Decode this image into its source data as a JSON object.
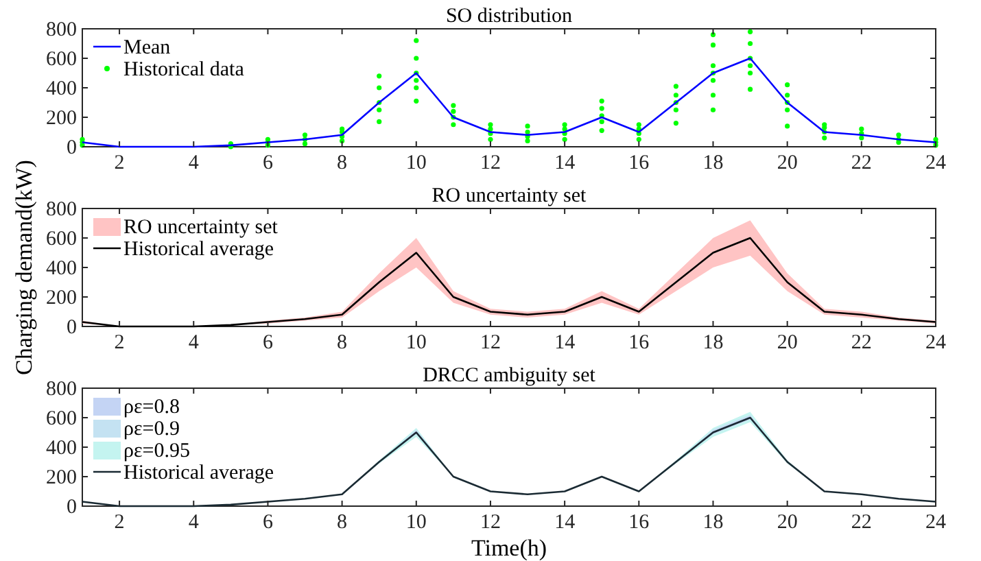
{
  "chart_data": [
    {
      "type": "line",
      "title": "SO distribution",
      "x": [
        1,
        2,
        3,
        4,
        5,
        6,
        7,
        8,
        9,
        10,
        11,
        12,
        13,
        14,
        15,
        16,
        17,
        18,
        19,
        20,
        21,
        22,
        23,
        24
      ],
      "xlim": [
        1,
        24
      ],
      "xticks": [
        2,
        4,
        6,
        8,
        10,
        12,
        14,
        16,
        18,
        20,
        22,
        24
      ],
      "ylim": [
        0,
        800
      ],
      "yticks": [
        0,
        200,
        400,
        600,
        800
      ],
      "legend": "top left",
      "series": [
        {
          "name": "Mean",
          "type": "line",
          "color": "#0000ff",
          "values": [
            30,
            0,
            0,
            0,
            10,
            30,
            50,
            80,
            300,
            500,
            200,
            100,
            80,
            100,
            200,
            100,
            300,
            500,
            600,
            300,
            100,
            80,
            50,
            30
          ]
        },
        {
          "name": "Historical data",
          "type": "scatter",
          "color": "#00ff00",
          "marker": "circle",
          "x": [
            1,
            1,
            1,
            5,
            5,
            6,
            6,
            6,
            7,
            7,
            7,
            8,
            8,
            8,
            8,
            9,
            9,
            9,
            9,
            9,
            10,
            10,
            10,
            10,
            10,
            10,
            11,
            11,
            11,
            11,
            12,
            12,
            12,
            12,
            13,
            13,
            13,
            13,
            14,
            14,
            14,
            14,
            15,
            15,
            15,
            15,
            15,
            16,
            16,
            16,
            16,
            17,
            17,
            17,
            17,
            17,
            18,
            18,
            18,
            18,
            18,
            18,
            18,
            19,
            19,
            19,
            19,
            19,
            19,
            20,
            20,
            20,
            20,
            20,
            21,
            21,
            21,
            21,
            22,
            22,
            22,
            23,
            23,
            23,
            24,
            24,
            24
          ],
          "values": [
            10,
            30,
            50,
            0,
            20,
            10,
            30,
            50,
            20,
            50,
            80,
            40,
            70,
            100,
            120,
            170,
            250,
            300,
            400,
            480,
            310,
            400,
            450,
            500,
            600,
            720,
            150,
            200,
            240,
            280,
            50,
            90,
            120,
            150,
            40,
            70,
            100,
            140,
            50,
            90,
            120,
            150,
            110,
            170,
            210,
            260,
            310,
            50,
            90,
            120,
            150,
            160,
            250,
            300,
            350,
            410,
            250,
            350,
            450,
            500,
            550,
            690,
            760,
            390,
            500,
            550,
            600,
            700,
            780,
            140,
            250,
            300,
            350,
            420,
            60,
            100,
            130,
            150,
            60,
            90,
            120,
            30,
            50,
            80,
            10,
            30,
            50
          ]
        }
      ]
    },
    {
      "type": "line",
      "title": "RO uncertainty set",
      "ylabel": "Charging demand(kW)",
      "x": [
        1,
        2,
        3,
        4,
        5,
        6,
        7,
        8,
        9,
        10,
        11,
        12,
        13,
        14,
        15,
        16,
        17,
        18,
        19,
        20,
        21,
        22,
        23,
        24
      ],
      "xlim": [
        1,
        24
      ],
      "xticks": [
        2,
        4,
        6,
        8,
        10,
        12,
        14,
        16,
        18,
        20,
        22,
        24
      ],
      "ylim": [
        0,
        800
      ],
      "yticks": [
        0,
        200,
        400,
        600,
        800
      ],
      "legend": "top left",
      "series": [
        {
          "name": "RO uncertainty set",
          "type": "line",
          "color": "#ffc4c4",
          "values": [
            null,
            null,
            null,
            null,
            null,
            null,
            null,
            null,
            null,
            null,
            null,
            null,
            null,
            null,
            null,
            null,
            null,
            null,
            null,
            null,
            null,
            null,
            null,
            null
          ],
          "lower": [
            20,
            0,
            0,
            0,
            10,
            20,
            40,
            60,
            240,
            400,
            160,
            80,
            60,
            80,
            160,
            80,
            240,
            400,
            480,
            240,
            80,
            60,
            40,
            20
          ],
          "upper": [
            40,
            0,
            0,
            0,
            10,
            40,
            60,
            100,
            360,
            600,
            240,
            120,
            100,
            120,
            240,
            120,
            360,
            600,
            720,
            360,
            120,
            100,
            60,
            40
          ]
        },
        {
          "name": "Historical average",
          "type": "line",
          "color": "#000000",
          "values": [
            30,
            0,
            0,
            0,
            10,
            30,
            50,
            80,
            300,
            500,
            200,
            100,
            80,
            100,
            200,
            100,
            300,
            500,
            600,
            300,
            100,
            80,
            50,
            30
          ]
        }
      ]
    },
    {
      "type": "line",
      "title": "DRCC ambiguity set",
      "xlabel": "Time(h)",
      "x": [
        1,
        2,
        3,
        4,
        5,
        6,
        7,
        8,
        9,
        10,
        11,
        12,
        13,
        14,
        15,
        16,
        17,
        18,
        19,
        20,
        21,
        22,
        23,
        24
      ],
      "xlim": [
        1,
        24
      ],
      "xticks": [
        2,
        4,
        6,
        8,
        10,
        12,
        14,
        16,
        18,
        20,
        22,
        24
      ],
      "ylim": [
        0,
        800
      ],
      "yticks": [
        0,
        200,
        400,
        600,
        800
      ],
      "legend": "top left",
      "series": [
        {
          "name": "ρε=0.8",
          "type": "line",
          "color": "#c4d4f4",
          "values": [
            null,
            null,
            null,
            null,
            null,
            null,
            null,
            null,
            null,
            null,
            null,
            null,
            null,
            null,
            null,
            null,
            null,
            null,
            null,
            null,
            null,
            null,
            null,
            null
          ],
          "lower": [
            30,
            0,
            0,
            0,
            10,
            30,
            50,
            80,
            300,
            490,
            200,
            100,
            80,
            100,
            200,
            100,
            300,
            490,
            590,
            300,
            100,
            80,
            50,
            30
          ],
          "upper": [
            30,
            0,
            0,
            0,
            10,
            30,
            50,
            80,
            300,
            510,
            200,
            100,
            80,
            100,
            200,
            100,
            300,
            510,
            610,
            300,
            100,
            80,
            50,
            30
          ]
        },
        {
          "name": "ρε=0.9",
          "type": "line",
          "color": "#c4e2f2",
          "values": [
            null,
            null,
            null,
            null,
            null,
            null,
            null,
            null,
            null,
            null,
            null,
            null,
            null,
            null,
            null,
            null,
            null,
            null,
            null,
            null,
            null,
            null,
            null,
            null
          ],
          "lower": [
            30,
            0,
            0,
            0,
            10,
            30,
            50,
            80,
            300,
            490,
            200,
            100,
            80,
            100,
            200,
            100,
            300,
            490,
            590,
            300,
            100,
            80,
            50,
            30
          ],
          "upper": [
            30,
            0,
            0,
            0,
            10,
            30,
            50,
            80,
            300,
            520,
            200,
            100,
            80,
            100,
            200,
            100,
            300,
            520,
            620,
            300,
            100,
            80,
            50,
            30
          ]
        },
        {
          "name": "ρε=0.95",
          "type": "line",
          "color": "#c4f4f0",
          "values": [
            null,
            null,
            null,
            null,
            null,
            null,
            null,
            null,
            null,
            null,
            null,
            null,
            null,
            null,
            null,
            null,
            null,
            null,
            null,
            null,
            null,
            null,
            null,
            null
          ],
          "lower": [
            30,
            0,
            0,
            0,
            10,
            30,
            50,
            80,
            290,
            470,
            200,
            100,
            80,
            100,
            200,
            100,
            290,
            470,
            570,
            290,
            100,
            80,
            50,
            30
          ],
          "upper": [
            30,
            0,
            0,
            0,
            10,
            30,
            50,
            80,
            310,
            530,
            200,
            100,
            80,
            100,
            200,
            100,
            310,
            530,
            640,
            310,
            100,
            80,
            50,
            30
          ]
        },
        {
          "name": "Historical average",
          "type": "line",
          "color": "#1a2a33",
          "values": [
            30,
            0,
            0,
            0,
            10,
            30,
            50,
            80,
            300,
            500,
            200,
            100,
            80,
            100,
            200,
            100,
            300,
            500,
            600,
            300,
            100,
            80,
            50,
            30
          ]
        }
      ]
    }
  ]
}
